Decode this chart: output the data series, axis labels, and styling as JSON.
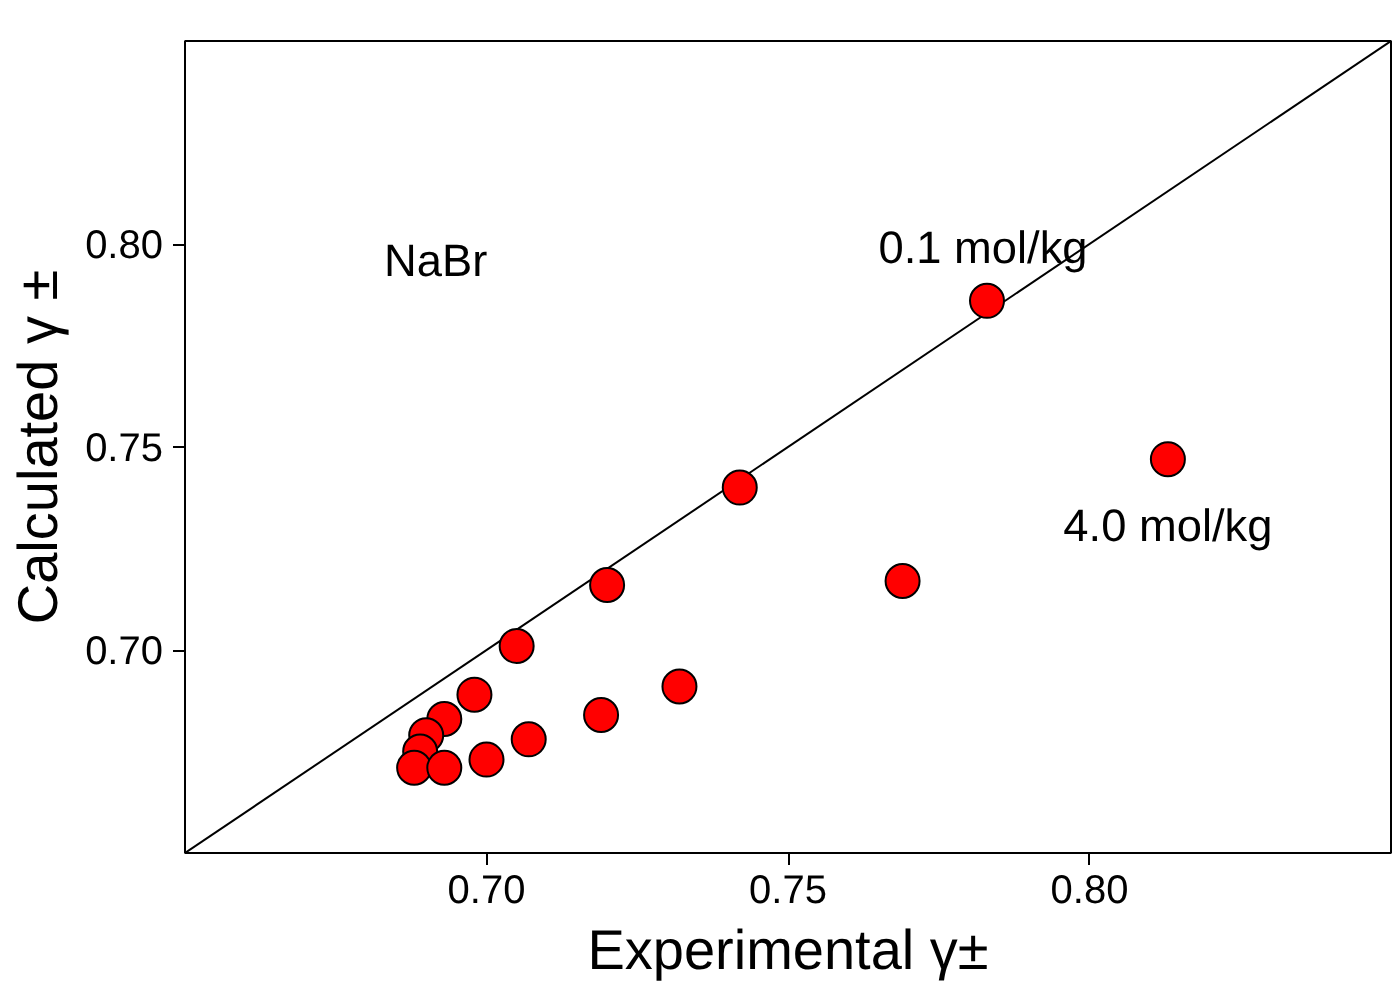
{
  "chart_data": {
    "type": "scatter",
    "xlabel": "Experimental γ±",
    "ylabel": "Calculated γ ±",
    "xlim": [
      0.65,
      0.85
    ],
    "ylim": [
      0.65,
      0.85
    ],
    "xticks": [
      {
        "value": 0.7,
        "label": "0.70"
      },
      0.75,
      {
        "value": 0.8,
        "label": "0.80"
      }
    ],
    "yticks": [
      {
        "value": 0.7,
        "label": "0.70"
      },
      0.75,
      {
        "value": 0.8,
        "label": "0.80"
      }
    ],
    "grid": false,
    "series": [
      {
        "type": "line",
        "color": "#000000",
        "x": [
          0.65,
          0.85
        ],
        "values": [
          0.65,
          0.85
        ]
      },
      {
        "marker": "circle",
        "color": "#ff0000",
        "x": [
          0.783,
          0.742,
          0.72,
          0.705,
          0.698,
          0.693,
          0.69,
          0.689,
          0.688,
          0.693,
          0.7,
          0.707,
          0.719,
          0.732,
          0.769,
          0.813
        ],
        "values": [
          0.786,
          0.74,
          0.716,
          0.701,
          0.689,
          0.683,
          0.679,
          0.675,
          0.671,
          0.671,
          0.673,
          0.678,
          0.684,
          0.691,
          0.717,
          0.747
        ]
      }
    ],
    "annotations": [
      "NaBr",
      {
        "text": "0.1 mol/kg",
        "x": 0.783,
        "y": 0.786
      },
      {
        "text": "4.0 mol/kg",
        "x": 0.813,
        "y": 0.747
      }
    ]
  }
}
